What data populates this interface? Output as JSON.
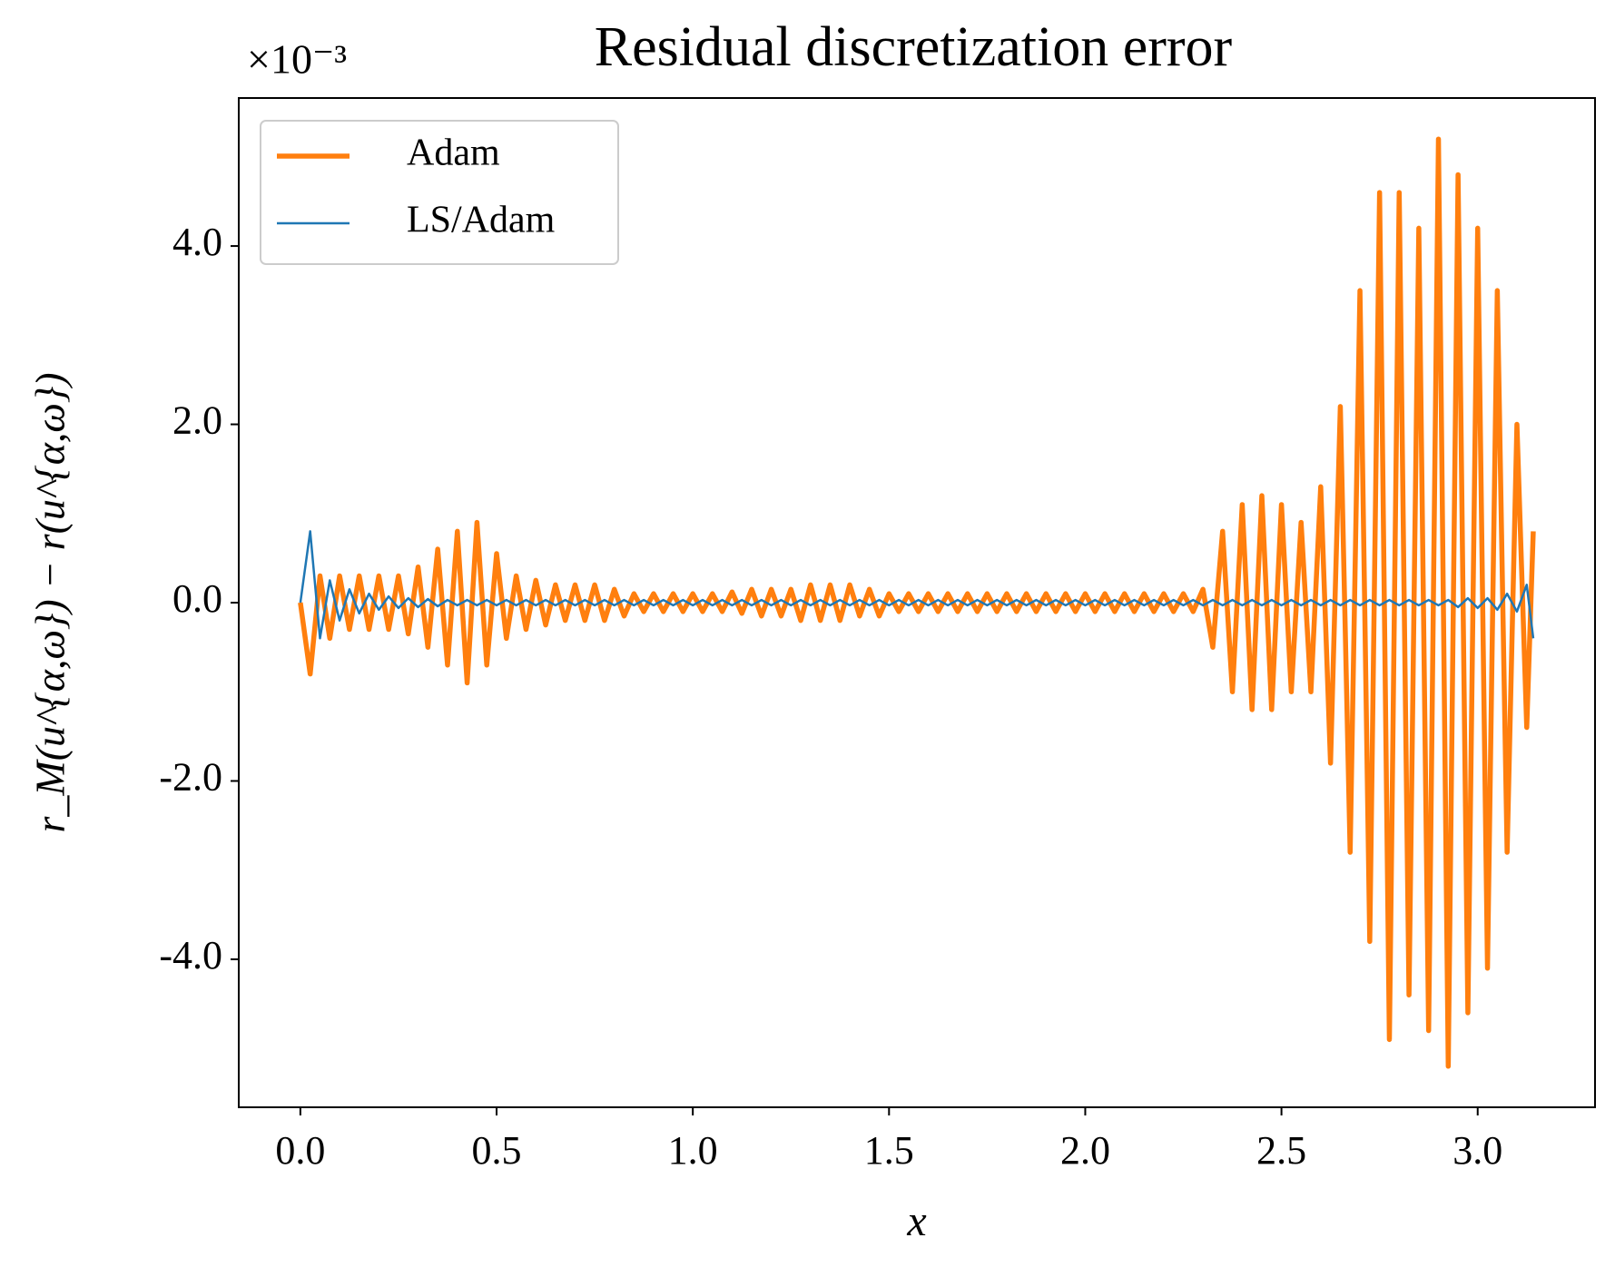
{
  "chart_data": {
    "type": "line",
    "title": "Residual discretization error",
    "xlabel": "x",
    "ylabel": "r_M(u^{α,ω}) − r(u^{α,ω})",
    "y_offset_label": "×10⁻³",
    "x": [
      0,
      0.025,
      0.05,
      0.075,
      0.1,
      0.125,
      0.15,
      0.175,
      0.2,
      0.225,
      0.25,
      0.275,
      0.3,
      0.325,
      0.35,
      0.375,
      0.4,
      0.425,
      0.45,
      0.475,
      0.5,
      0.525,
      0.55,
      0.575,
      0.6,
      0.625,
      0.65,
      0.675,
      0.7,
      0.725,
      0.75,
      0.775,
      0.8,
      0.825,
      0.85,
      0.875,
      0.9,
      0.925,
      0.95,
      0.975,
      1.0,
      1.025,
      1.05,
      1.075,
      1.1,
      1.125,
      1.15,
      1.175,
      1.2,
      1.225,
      1.25,
      1.275,
      1.3,
      1.325,
      1.35,
      1.375,
      1.4,
      1.425,
      1.45,
      1.475,
      1.5,
      1.525,
      1.55,
      1.575,
      1.6,
      1.625,
      1.65,
      1.675,
      1.7,
      1.725,
      1.75,
      1.775,
      1.8,
      1.825,
      1.85,
      1.875,
      1.9,
      1.925,
      1.95,
      1.975,
      2.0,
      2.025,
      2.05,
      2.075,
      2.1,
      2.125,
      2.15,
      2.175,
      2.2,
      2.225,
      2.25,
      2.275,
      2.3,
      2.325,
      2.35,
      2.375,
      2.4,
      2.425,
      2.45,
      2.475,
      2.5,
      2.525,
      2.55,
      2.575,
      2.6,
      2.625,
      2.65,
      2.675,
      2.7,
      2.725,
      2.75,
      2.775,
      2.8,
      2.825,
      2.85,
      2.875,
      2.9,
      2.925,
      2.95,
      2.975,
      3.0,
      3.025,
      3.05,
      3.075,
      3.1,
      3.125,
      3.1416
    ],
    "series": [
      {
        "name": "Adam",
        "color": "#ff7f0e",
        "width": 5.5,
        "values": [
          0.0,
          -0.8,
          0.3,
          -0.4,
          0.3,
          -0.3,
          0.3,
          -0.3,
          0.3,
          -0.3,
          0.3,
          -0.35,
          0.4,
          -0.5,
          0.6,
          -0.7,
          0.8,
          -0.9,
          0.9,
          -0.7,
          0.55,
          -0.4,
          0.3,
          -0.3,
          0.25,
          -0.25,
          0.2,
          -0.2,
          0.2,
          -0.2,
          0.2,
          -0.2,
          0.15,
          -0.15,
          0.1,
          -0.1,
          0.1,
          -0.1,
          0.1,
          -0.1,
          0.1,
          -0.1,
          0.1,
          -0.1,
          0.12,
          -0.12,
          0.15,
          -0.15,
          0.15,
          -0.15,
          0.15,
          -0.2,
          0.2,
          -0.2,
          0.2,
          -0.2,
          0.2,
          -0.15,
          0.15,
          -0.15,
          0.1,
          -0.1,
          0.1,
          -0.1,
          0.1,
          -0.1,
          0.1,
          -0.1,
          0.1,
          -0.1,
          0.1,
          -0.1,
          0.1,
          -0.1,
          0.1,
          -0.1,
          0.1,
          -0.1,
          0.1,
          -0.1,
          0.1,
          -0.1,
          0.1,
          -0.1,
          0.1,
          -0.1,
          0.1,
          -0.1,
          0.1,
          -0.1,
          0.1,
          -0.1,
          0.15,
          -0.5,
          0.8,
          -1.0,
          1.1,
          -1.2,
          1.2,
          -1.2,
          1.1,
          -1.0,
          0.9,
          -1.0,
          1.3,
          -1.8,
          2.2,
          -2.8,
          3.5,
          -3.8,
          4.6,
          -4.9,
          4.6,
          -4.4,
          4.2,
          -4.8,
          5.2,
          -5.2,
          4.8,
          -4.6,
          4.2,
          -4.1,
          3.5,
          -2.8,
          2.0,
          -1.4,
          0.8
        ]
      },
      {
        "name": "LS/Adam",
        "color": "#1f77b4",
        "width": 2.5,
        "values": [
          0.0,
          0.8,
          -0.4,
          0.25,
          -0.2,
          0.15,
          -0.12,
          0.1,
          -0.08,
          0.07,
          -0.06,
          0.05,
          -0.05,
          0.04,
          -0.04,
          0.03,
          -0.03,
          0.03,
          -0.03,
          0.03,
          -0.03,
          0.03,
          -0.03,
          0.03,
          -0.03,
          0.03,
          -0.03,
          0.03,
          -0.03,
          0.03,
          -0.03,
          0.03,
          -0.03,
          0.03,
          -0.03,
          0.03,
          -0.03,
          0.03,
          -0.03,
          0.03,
          -0.03,
          0.03,
          -0.03,
          0.03,
          -0.03,
          0.03,
          -0.03,
          0.03,
          -0.03,
          0.03,
          -0.03,
          0.03,
          -0.03,
          0.03,
          -0.03,
          0.03,
          -0.03,
          0.03,
          -0.03,
          0.03,
          -0.03,
          0.03,
          -0.03,
          0.03,
          -0.03,
          0.03,
          -0.03,
          0.03,
          -0.03,
          0.03,
          -0.03,
          0.03,
          -0.03,
          0.03,
          -0.03,
          0.03,
          -0.03,
          0.03,
          -0.03,
          0.03,
          -0.03,
          0.03,
          -0.03,
          0.03,
          -0.03,
          0.03,
          -0.03,
          0.03,
          -0.03,
          0.03,
          -0.03,
          0.03,
          -0.03,
          0.03,
          -0.03,
          0.03,
          -0.03,
          0.03,
          -0.03,
          0.03,
          -0.03,
          0.03,
          -0.03,
          0.03,
          -0.03,
          0.03,
          -0.03,
          0.03,
          -0.03,
          0.03,
          -0.03,
          0.03,
          -0.03,
          0.03,
          -0.03,
          0.03,
          -0.03,
          0.03,
          -0.05,
          0.05,
          -0.06,
          0.05,
          -0.08,
          0.1,
          -0.1,
          0.2,
          -0.4
        ]
      }
    ],
    "xlim": [
      -0.157,
      3.299
    ],
    "ylim": [
      -5.66,
      5.66
    ],
    "xticks": [
      {
        "value": 0,
        "label": "0.0"
      },
      {
        "value": 0.5,
        "label": "0.5"
      },
      {
        "value": 1,
        "label": "1.0"
      },
      {
        "value": 1.5,
        "label": "1.5"
      },
      {
        "value": 2,
        "label": "2.0"
      },
      {
        "value": 2.5,
        "label": "2.5"
      },
      {
        "value": 3,
        "label": "3.0"
      }
    ],
    "yticks": [
      {
        "value": -4,
        "label": "-4.0"
      },
      {
        "value": -2,
        "label": "-2.0"
      },
      {
        "value": 0,
        "label": "0.0"
      },
      {
        "value": 2,
        "label": "2.0"
      },
      {
        "value": 4,
        "label": "4.0"
      }
    ],
    "grid": false,
    "legend": "upper left"
  }
}
